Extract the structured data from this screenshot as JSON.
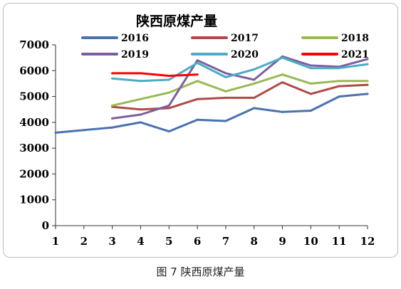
{
  "caption": "图 7  陕西原煤产量",
  "chart_data": {
    "type": "line",
    "title": "陕西原煤产量",
    "xlabel": "",
    "ylabel": "",
    "categories": [
      "1",
      "2",
      "3",
      "4",
      "5",
      "6",
      "7",
      "8",
      "9",
      "10",
      "11",
      "12"
    ],
    "ylim": [
      0,
      7000
    ],
    "yticks": [
      "0",
      "1000",
      "2000",
      "3000",
      "4000",
      "5000",
      "6000",
      "7000"
    ],
    "grid": false,
    "legend": "top",
    "series": [
      {
        "name": "2016",
        "color": "#4a72b0",
        "values": [
          3600,
          3700,
          3800,
          4000,
          3650,
          4100,
          4050,
          4550,
          4400,
          4450,
          5000,
          5100
        ]
      },
      {
        "name": "2017",
        "color": "#b04a46",
        "values": [
          null,
          null,
          4600,
          4500,
          4550,
          4900,
          4950,
          4950,
          5550,
          5100,
          5400,
          5450
        ]
      },
      {
        "name": "2018",
        "color": "#98b954",
        "values": [
          null,
          null,
          4650,
          4900,
          5150,
          5600,
          5200,
          5500,
          5850,
          5500,
          5600,
          5600
        ]
      },
      {
        "name": "2019",
        "color": "#7d5fa0",
        "values": [
          null,
          null,
          4150,
          4300,
          4650,
          6400,
          5900,
          5650,
          6550,
          6200,
          6150,
          6450
        ]
      },
      {
        "name": "2020",
        "color": "#4bacc6",
        "values": [
          null,
          null,
          5700,
          5600,
          5650,
          6300,
          5750,
          6050,
          6500,
          6100,
          6100,
          6250
        ]
      },
      {
        "name": "2021",
        "color": "#ff0000",
        "values": [
          null,
          null,
          5900,
          5900,
          5800,
          5850,
          null,
          null,
          null,
          null,
          null,
          null
        ]
      }
    ]
  }
}
